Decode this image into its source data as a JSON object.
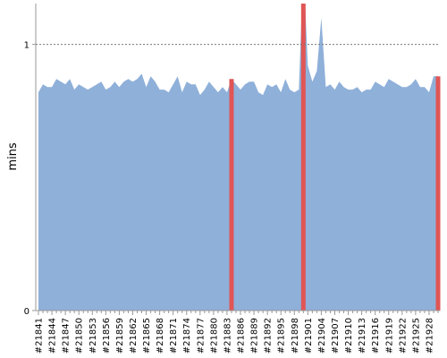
{
  "chart_data": {
    "type": "area",
    "y_label": "mins",
    "categories": [
      "#21841",
      null,
      null,
      "#21844",
      null,
      null,
      "#21847",
      null,
      null,
      "#21850",
      null,
      null,
      "#21853",
      null,
      null,
      "#21856",
      null,
      null,
      "#21859",
      null,
      null,
      "#21862",
      null,
      null,
      "#21865",
      null,
      null,
      "#21868",
      null,
      null,
      "#21871",
      null,
      null,
      "#21874",
      null,
      null,
      "#21877",
      null,
      null,
      "#21880",
      null,
      null,
      "#21883",
      null,
      null,
      "#21886",
      null,
      null,
      "#21889",
      null,
      null,
      "#21892",
      null,
      null,
      "#21895",
      null,
      null,
      "#21898",
      null,
      null,
      "#21901",
      null,
      null,
      "#21904",
      null,
      null,
      "#21907",
      null,
      null,
      "#21910",
      null,
      null,
      "#21913",
      null,
      null,
      "#21916",
      null,
      null,
      "#21919",
      null,
      null,
      "#21922",
      null,
      null,
      "#21925",
      null,
      null,
      "#21928",
      null,
      null
    ],
    "series": [
      {
        "color": "#8fb0d9",
        "values": [
          0.82,
          0.85,
          0.84,
          0.84,
          0.87,
          0.86,
          0.85,
          0.87,
          0.83,
          0.85,
          0.84,
          0.83,
          0.84,
          0.85,
          0.86,
          0.83,
          0.84,
          0.86,
          0.84,
          0.86,
          0.87,
          0.86,
          0.87,
          0.89,
          0.84,
          0.88,
          0.86,
          0.83,
          0.83,
          0.82,
          0.85,
          0.88,
          0.82,
          0.86,
          0.85,
          0.85,
          0.81,
          0.83,
          0.86,
          0.84,
          0.82,
          0.84,
          0.82,
          0.87,
          0.85,
          0.83,
          0.85,
          0.86,
          0.86,
          0.82,
          0.81,
          0.85,
          0.84,
          0.85,
          0.82,
          0.87,
          0.83,
          0.82,
          0.83,
          1.3,
          0.92,
          0.86,
          0.9,
          1.1,
          0.84,
          0.85,
          0.83,
          0.86,
          0.84,
          0.83,
          0.83,
          0.84,
          0.82,
          0.83,
          0.83,
          0.86,
          0.85,
          0.84,
          0.87,
          0.86,
          0.85,
          0.84,
          0.84,
          0.85,
          0.87,
          0.84,
          0.84,
          0.82,
          0.88,
          0.88
        ]
      }
    ],
    "failed": [
      43,
      59,
      89
    ],
    "failed_color": "#e05555",
    "ylim": [
      0,
      1.15
    ],
    "yticks": [
      0,
      1
    ],
    "grid": "dashed"
  }
}
